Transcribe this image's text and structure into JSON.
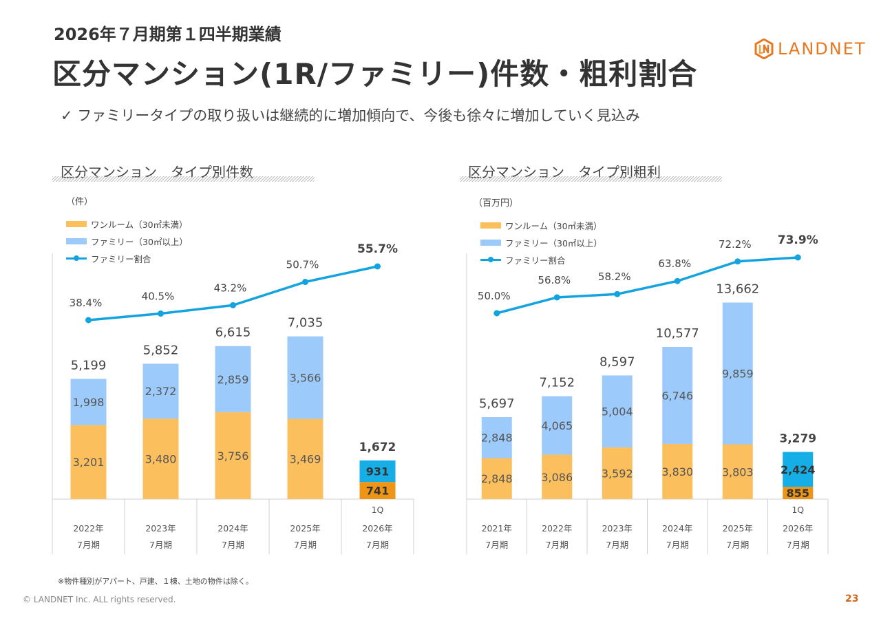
{
  "header": {
    "subtitle": "2026年７月期第１四半期業績",
    "title": "区分マンション(1R/ファミリー)件数・粗利割合",
    "bullet": "✓ ファミリータイプの取り扱いは継続的に増加傾向で、今後も徐々に増加していく見込み"
  },
  "logo": {
    "text": "LANDNET",
    "icon": "landnet-hexagon-logo-icon"
  },
  "colors": {
    "oneroom": "#fcbf5e",
    "family": "#9ccbfb",
    "latest_oneroom": "#ef9516",
    "latest_family": "#16aee6",
    "ratio_line": "#13a3de",
    "brand": "#e87722"
  },
  "chart_data": [
    {
      "type": "bar",
      "stacked": true,
      "title": "区分マンション　タイプ別件数",
      "unit": "（件）",
      "categories": [
        "2022年\n7月期",
        "2023年\n7月期",
        "2024年\n7月期",
        "2025年\n7月期",
        "2026年\n7月期"
      ],
      "category_lines": [
        [
          "",
          "2022年",
          "7月期"
        ],
        [
          "",
          "2023年",
          "7月期"
        ],
        [
          "",
          "2024年",
          "7月期"
        ],
        [
          "",
          "2025年",
          "7月期"
        ],
        [
          "1Q",
          "2026年",
          "7月期"
        ]
      ],
      "legend": [
        "ワンルーム（30㎡未満）",
        "ファミリー（30㎡以上）",
        "ファミリー割合"
      ],
      "legend_placement": "top-left",
      "series": [
        {
          "name": "ワンルーム（30㎡未満）",
          "values": [
            3201,
            3480,
            3756,
            3469,
            741
          ],
          "labels": [
            "3,201",
            "3,480",
            "3,756",
            "3,469",
            "741"
          ]
        },
        {
          "name": "ファミリー（30㎡以上）",
          "values": [
            1998,
            2372,
            2859,
            3566,
            931
          ],
          "labels": [
            "1,998",
            "2,372",
            "2,859",
            "3,566",
            "931"
          ]
        },
        {
          "name": "ファミリー割合",
          "type": "line",
          "values": [
            38.4,
            40.5,
            43.2,
            50.7,
            55.7
          ],
          "labels": [
            "38.4%",
            "40.5%",
            "43.2%",
            "50.7%",
            "55.7%"
          ]
        }
      ],
      "totals": [
        5199,
        5852,
        6615,
        7035,
        1672
      ],
      "total_labels": [
        "5,199",
        "5,852",
        "6,615",
        "7,035",
        "1,672"
      ],
      "highlight_last": true,
      "ylim": [
        0,
        7500
      ],
      "ratio_ylim": [
        0,
        100
      ],
      "grid": false
    },
    {
      "type": "bar",
      "stacked": true,
      "title": "区分マンション　タイプ別粗利",
      "unit": "（百万円）",
      "categories": [
        "2021年\n7月期",
        "2022年\n7月期",
        "2023年\n7月期",
        "2024年\n7月期",
        "2025年\n7月期",
        "2026年\n7月期"
      ],
      "category_lines": [
        [
          "",
          "2021年",
          "7月期"
        ],
        [
          "",
          "2022年",
          "7月期"
        ],
        [
          "",
          "2023年",
          "7月期"
        ],
        [
          "",
          "2024年",
          "7月期"
        ],
        [
          "",
          "2025年",
          "7月期"
        ],
        [
          "1Q",
          "2026年",
          "7月期"
        ]
      ],
      "legend": [
        "ワンルーム（30㎡未満）",
        "ファミリー（30㎡以上）",
        "ファミリー割合"
      ],
      "legend_placement": "top-left",
      "series": [
        {
          "name": "ワンルーム（30㎡未満）",
          "values": [
            2848,
            3086,
            3592,
            3830,
            3803,
            855
          ],
          "labels": [
            "2,848",
            "3,086",
            "3,592",
            "3,830",
            "3,803",
            "855"
          ]
        },
        {
          "name": "ファミリー（30㎡以上）",
          "values": [
            2848,
            4065,
            5004,
            6746,
            9859,
            2424
          ],
          "labels": [
            "2,848",
            "4,065",
            "5,004",
            "6,746",
            "9,859",
            "2,424"
          ]
        },
        {
          "name": "ファミリー割合",
          "type": "line",
          "values": [
            50.0,
            56.8,
            58.2,
            63.8,
            72.2,
            73.9
          ],
          "labels": [
            "50.0%",
            "56.8%",
            "58.2%",
            "63.8%",
            "72.2%",
            "73.9%"
          ]
        }
      ],
      "totals": [
        5697,
        7152,
        8597,
        10577,
        13662,
        3279
      ],
      "total_labels": [
        "5,697",
        "7,152",
        "8,597",
        "10,577",
        "13,662",
        "3,279"
      ],
      "highlight_last": true,
      "ylim": [
        0,
        14500
      ],
      "ratio_ylim": [
        0,
        100
      ],
      "grid": false
    }
  ],
  "footer": {
    "note": "※物件種別がアパート、戸建、１棟、土地の物件は除く。",
    "copyright": "© LANDNET Inc. ALL rights reserved.",
    "page_number": "23"
  }
}
